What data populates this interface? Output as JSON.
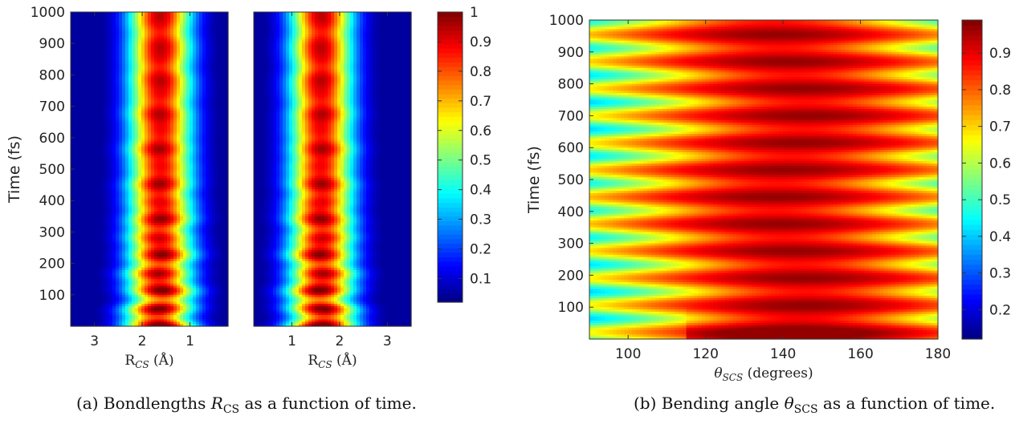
{
  "chart_data": [
    {
      "type": "heatmap",
      "xlabel_base": "R",
      "xlabel_sub": "CS",
      "xlabel_unit": " (Å)",
      "ylabel": "Time (fs)",
      "xlim": [
        0.2,
        3.5
      ],
      "x_reversed": true,
      "ylim": [
        0,
        1000
      ],
      "xticks": [
        "3",
        "2",
        "1"
      ],
      "yticks": [
        "100",
        "200",
        "300",
        "400",
        "500",
        "600",
        "700",
        "800",
        "900",
        "1000"
      ],
      "colormap": "jet",
      "description_value": "normalized density peaking near R = 1.6 Å"
    },
    {
      "type": "heatmap",
      "xlabel_base": "R",
      "xlabel_sub": "CS",
      "xlabel_unit": " (Å)",
      "xlim": [
        0.2,
        3.5
      ],
      "x_reversed": false,
      "ylim": [
        0,
        1000
      ],
      "xticks": [
        "1",
        "2",
        "3"
      ],
      "colormap": "jet",
      "colorbar": {
        "range": [
          0.02,
          1.0
        ],
        "ticks": [
          "0.1",
          "0.2",
          "0.3",
          "0.4",
          "0.5",
          "0.6",
          "0.7",
          "0.8",
          "0.9",
          "1"
        ]
      }
    },
    {
      "type": "heatmap",
      "xlabel_greek": "θ",
      "xlabel_sub": "SCS",
      "xlabel_unit": " (degrees)",
      "ylabel": "Time (fs)",
      "xlim": [
        90,
        180
      ],
      "ylim": [
        0,
        1000
      ],
      "xticks": [
        "100",
        "120",
        "140",
        "160",
        "180"
      ],
      "yticks": [
        "100",
        "200",
        "300",
        "400",
        "500",
        "600",
        "700",
        "800",
        "900",
        "1000"
      ],
      "colormap": "jet",
      "colorbar": {
        "range": [
          0.12,
          0.99
        ],
        "ticks": [
          "0.2",
          "0.3",
          "0.4",
          "0.5",
          "0.6",
          "0.7",
          "0.8",
          "0.9"
        ]
      }
    }
  ],
  "captions": {
    "a": {
      "prefix": "(a) Bondlengths ",
      "sym": "R",
      "sub": "CS",
      "suffix": " as a function of time."
    },
    "b": {
      "prefix": "(b) Bending angle ",
      "sym": "θ",
      "sub": "SCS",
      "suffix": " as a function of time."
    }
  }
}
